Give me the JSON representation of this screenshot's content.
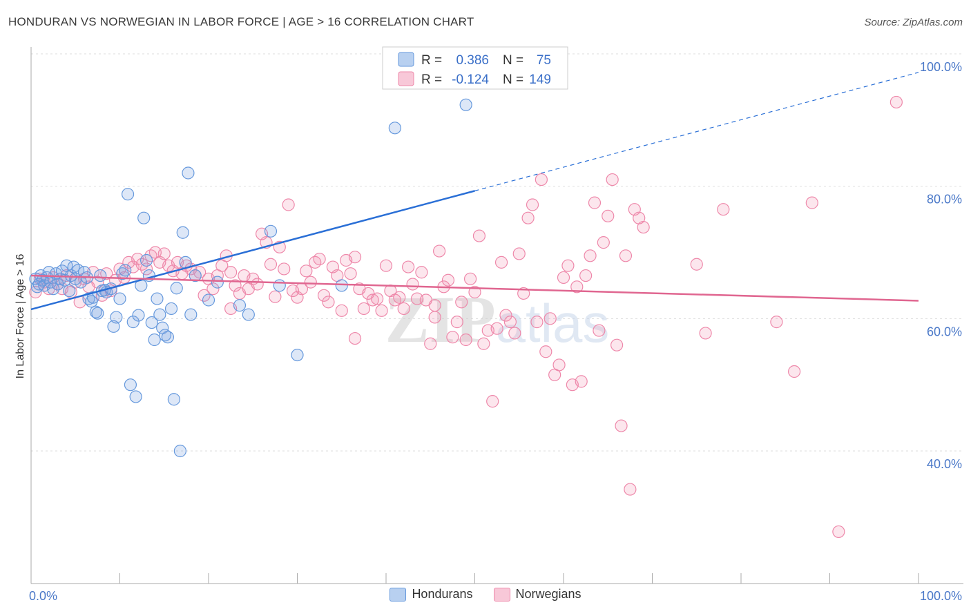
{
  "header": {
    "title": "HONDURAN VS NORWEGIAN IN LABOR FORCE | AGE > 16 CORRELATION CHART",
    "source": "Source: ZipAtlas.com"
  },
  "watermark": "ZIPatlas",
  "chart_data": {
    "type": "scatter",
    "xlabel": "",
    "ylabel": "In Labor Force | Age > 16",
    "xlim": [
      0,
      100
    ],
    "ylim": [
      20,
      100
    ],
    "x_tick_labels": [
      "0.0%",
      "100.0%"
    ],
    "y_ticks": [
      40,
      60,
      80,
      100
    ],
    "y_tick_labels": [
      "40.0%",
      "60.0%",
      "80.0%",
      "100.0%"
    ],
    "grid": true,
    "legend_position": "top-center",
    "series": [
      {
        "name": "Hondurans",
        "color": "#6699dd",
        "line_color": "#2a6fd6",
        "r_label": "R =",
        "r_value": "0.386",
        "n_label": "N =",
        "n_value": "75",
        "trend": {
          "x0": 0,
          "y0": 61.4,
          "x1": 50,
          "y1": 79.3,
          "dashed_to_x": 100,
          "dashed_to_y": 97.2
        },
        "points": [
          [
            0.5,
            66
          ],
          [
            0.7,
            64.8
          ],
          [
            0.9,
            65.2
          ],
          [
            1.1,
            66.5
          ],
          [
            1.3,
            65.8
          ],
          [
            1.5,
            65
          ],
          [
            1.8,
            66.2
          ],
          [
            2.0,
            67
          ],
          [
            2.2,
            65.5
          ],
          [
            2.5,
            64.5
          ],
          [
            2.8,
            66.8
          ],
          [
            3.0,
            65.2
          ],
          [
            3.3,
            66
          ],
          [
            3.5,
            67.2
          ],
          [
            3.8,
            65.8
          ],
          [
            4.0,
            68
          ],
          [
            4.3,
            64.2
          ],
          [
            4.5,
            66.5
          ],
          [
            4.8,
            67.8
          ],
          [
            5.0,
            66
          ],
          [
            5.3,
            67.3
          ],
          [
            5.6,
            65.5
          ],
          [
            6.0,
            67
          ],
          [
            6.3,
            66.2
          ],
          [
            6.5,
            63
          ],
          [
            6.8,
            62.6
          ],
          [
            7.0,
            63.2
          ],
          [
            7.3,
            61
          ],
          [
            7.5,
            60.8
          ],
          [
            7.8,
            66.5
          ],
          [
            8.0,
            64.2
          ],
          [
            8.3,
            64.3
          ],
          [
            8.5,
            64
          ],
          [
            9.0,
            64.5
          ],
          [
            9.3,
            58.8
          ],
          [
            9.6,
            60.2
          ],
          [
            10.0,
            63
          ],
          [
            10.3,
            66.8
          ],
          [
            10.6,
            67.3
          ],
          [
            10.9,
            78.8
          ],
          [
            11.2,
            50
          ],
          [
            11.5,
            59.5
          ],
          [
            11.8,
            48.2
          ],
          [
            12.1,
            60.5
          ],
          [
            12.4,
            65
          ],
          [
            12.7,
            75.2
          ],
          [
            13.0,
            68.8
          ],
          [
            13.3,
            66.5
          ],
          [
            13.6,
            59.4
          ],
          [
            13.9,
            56.8
          ],
          [
            14.2,
            63
          ],
          [
            14.5,
            60.6
          ],
          [
            14.8,
            58.6
          ],
          [
            15.1,
            57.5
          ],
          [
            15.4,
            57.2
          ],
          [
            15.8,
            61.5
          ],
          [
            16.1,
            47.8
          ],
          [
            16.4,
            64.6
          ],
          [
            16.8,
            40
          ],
          [
            17.1,
            73
          ],
          [
            17.4,
            68.5
          ],
          [
            17.7,
            82
          ],
          [
            18.0,
            60.6
          ],
          [
            18.5,
            66.5
          ],
          [
            20.0,
            62.8
          ],
          [
            21.0,
            65.5
          ],
          [
            23.5,
            62
          ],
          [
            24.5,
            60.6
          ],
          [
            27.0,
            73.2
          ],
          [
            28.0,
            65
          ],
          [
            30.0,
            54.5
          ],
          [
            35.0,
            65
          ],
          [
            41.0,
            88.8
          ],
          [
            41.5,
            100
          ],
          [
            49.0,
            92.3
          ]
        ]
      },
      {
        "name": "Norwegians",
        "color": "#ee88aa",
        "line_color": "#e06690",
        "r_label": "R =",
        "r_value": "-0.124",
        "n_label": "N =",
        "n_value": "149",
        "trend": {
          "x0": 0,
          "y0": 66.5,
          "x1": 100,
          "y1": 62.7
        },
        "points": [
          [
            0.5,
            64
          ],
          [
            1.0,
            66
          ],
          [
            1.5,
            65.5
          ],
          [
            2.0,
            64.5
          ],
          [
            2.5,
            66.2
          ],
          [
            3.0,
            65.2
          ],
          [
            3.5,
            64.5
          ],
          [
            4.0,
            66.5
          ],
          [
            4.5,
            64
          ],
          [
            5.0,
            65.5
          ],
          [
            5.5,
            62.5
          ],
          [
            6.0,
            66
          ],
          [
            6.5,
            64.8
          ],
          [
            7.0,
            67
          ],
          [
            7.5,
            65.5
          ],
          [
            8.0,
            63.5
          ],
          [
            8.5,
            66.8
          ],
          [
            9.0,
            64.2
          ],
          [
            9.5,
            65.8
          ],
          [
            10.0,
            67.5
          ],
          [
            10.5,
            66.2
          ],
          [
            11.0,
            68.5
          ],
          [
            11.5,
            67.8
          ],
          [
            12.0,
            69
          ],
          [
            12.5,
            68.2
          ],
          [
            13.0,
            67.5
          ],
          [
            13.5,
            69.5
          ],
          [
            14.0,
            70
          ],
          [
            14.5,
            68.5
          ],
          [
            15.0,
            69.8
          ],
          [
            15.5,
            68
          ],
          [
            16.0,
            67.2
          ],
          [
            16.5,
            68.5
          ],
          [
            17.0,
            66.8
          ],
          [
            17.5,
            68
          ],
          [
            18.0,
            67.5
          ],
          [
            18.5,
            66.5
          ],
          [
            19.0,
            67
          ],
          [
            19.5,
            63.5
          ],
          [
            20.0,
            66
          ],
          [
            20.5,
            64.5
          ],
          [
            21.0,
            66.5
          ],
          [
            21.5,
            68
          ],
          [
            22.0,
            69.5
          ],
          [
            22.5,
            67
          ],
          [
            23.0,
            65
          ],
          [
            23.5,
            63.8
          ],
          [
            24.0,
            66.5
          ],
          [
            24.5,
            64.5
          ],
          [
            25.0,
            66
          ],
          [
            25.5,
            65.2
          ],
          [
            26.0,
            72.8
          ],
          [
            26.5,
            71.5
          ],
          [
            27.0,
            68.2
          ],
          [
            27.5,
            63.3
          ],
          [
            28.0,
            70.8
          ],
          [
            28.5,
            67.5
          ],
          [
            29.0,
            77.2
          ],
          [
            29.5,
            64.2
          ],
          [
            30.0,
            63.2
          ],
          [
            30.5,
            64.5
          ],
          [
            31.0,
            67.2
          ],
          [
            31.5,
            65.5
          ],
          [
            32.0,
            68.5
          ],
          [
            32.5,
            69
          ],
          [
            33.0,
            63.5
          ],
          [
            33.5,
            62.5
          ],
          [
            34.0,
            67.8
          ],
          [
            34.5,
            66.5
          ],
          [
            35.0,
            61.2
          ],
          [
            35.5,
            68.8
          ],
          [
            36.0,
            66.8
          ],
          [
            36.5,
            69.3
          ],
          [
            37.0,
            64.5
          ],
          [
            37.5,
            61.5
          ],
          [
            38.0,
            63.8
          ],
          [
            38.5,
            62.8
          ],
          [
            39.0,
            63
          ],
          [
            39.5,
            61.2
          ],
          [
            40.0,
            68
          ],
          [
            40.5,
            64.2
          ],
          [
            41.0,
            62.8
          ],
          [
            41.5,
            63.2
          ],
          [
            42.0,
            61.5
          ],
          [
            42.5,
            67.8
          ],
          [
            43.0,
            65.2
          ],
          [
            43.5,
            63
          ],
          [
            44.0,
            67
          ],
          [
            44.5,
            62.8
          ],
          [
            45.0,
            56.2
          ],
          [
            45.5,
            60.2
          ],
          [
            46.0,
            70.2
          ],
          [
            46.5,
            64.8
          ],
          [
            47.0,
            65.8
          ],
          [
            47.5,
            57.2
          ],
          [
            48.0,
            59.5
          ],
          [
            48.5,
            62.5
          ],
          [
            49.0,
            56.8
          ],
          [
            49.5,
            66
          ],
          [
            50.0,
            64
          ],
          [
            50.5,
            72.5
          ],
          [
            51.0,
            56.2
          ],
          [
            51.5,
            58.2
          ],
          [
            52.0,
            47.5
          ],
          [
            52.5,
            58.5
          ],
          [
            53.0,
            68.5
          ],
          [
            53.5,
            60.5
          ],
          [
            54.0,
            59.5
          ],
          [
            54.5,
            57.8
          ],
          [
            55.0,
            69.8
          ],
          [
            55.5,
            63.8
          ],
          [
            56.0,
            75.2
          ],
          [
            56.5,
            77.2
          ],
          [
            57.0,
            59.5
          ],
          [
            57.5,
            81
          ],
          [
            58.0,
            55
          ],
          [
            58.5,
            60
          ],
          [
            59.0,
            51.5
          ],
          [
            59.5,
            53
          ],
          [
            60.0,
            66.2
          ],
          [
            60.5,
            68
          ],
          [
            61.0,
            50
          ],
          [
            61.5,
            64.8
          ],
          [
            62.0,
            50.5
          ],
          [
            62.5,
            66.5
          ],
          [
            63.0,
            69.5
          ],
          [
            63.5,
            77.5
          ],
          [
            64.0,
            58.2
          ],
          [
            64.5,
            71.5
          ],
          [
            65.0,
            75.5
          ],
          [
            65.5,
            81
          ],
          [
            66.0,
            56
          ],
          [
            66.5,
            43.8
          ],
          [
            67.0,
            69.5
          ],
          [
            67.5,
            34.2
          ],
          [
            68.0,
            76.5
          ],
          [
            68.5,
            75.2
          ],
          [
            69.0,
            73.8
          ],
          [
            75.0,
            68.2
          ],
          [
            76.0,
            57.8
          ],
          [
            78.0,
            76.5
          ],
          [
            84.0,
            59.5
          ],
          [
            86.0,
            52
          ],
          [
            88.0,
            77.5
          ],
          [
            91.0,
            27.8
          ],
          [
            97.5,
            92.7
          ],
          [
            22.5,
            61.5
          ],
          [
            36.5,
            57
          ],
          [
            45.5,
            62
          ]
        ]
      }
    ]
  }
}
